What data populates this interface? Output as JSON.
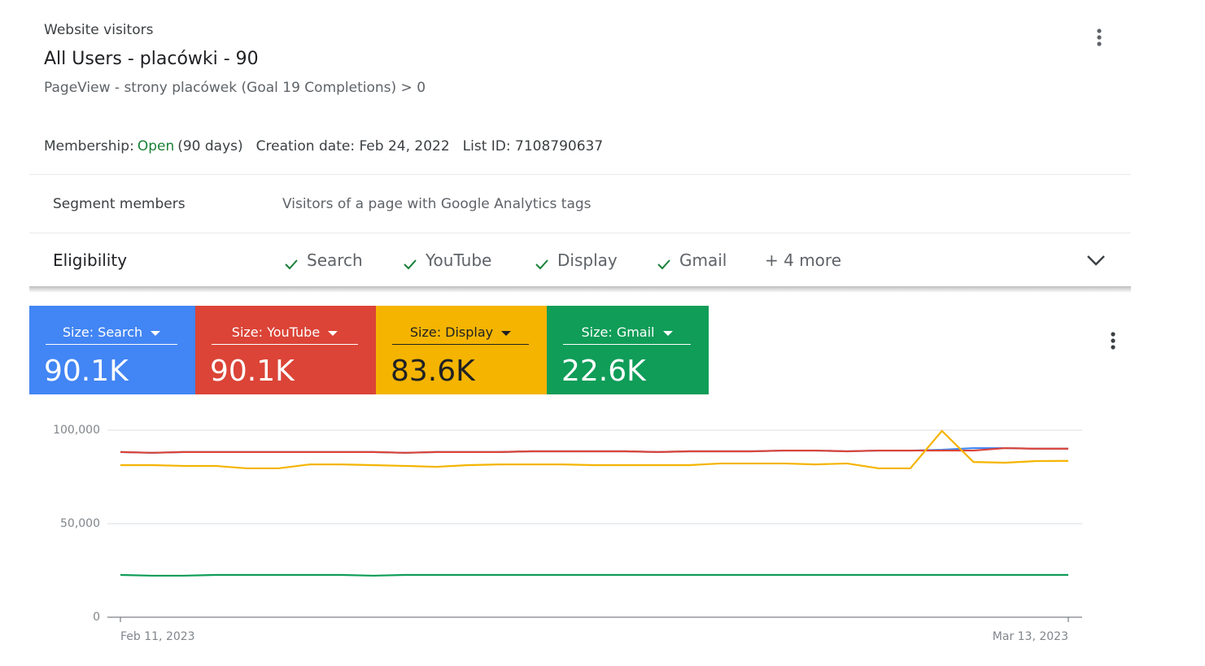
{
  "header": {
    "kicker": "Website visitors",
    "title": "All Users - placówki - 90",
    "rule": "PageView - strony placówek (Goal 19 Completions) > 0"
  },
  "membership": {
    "label": "Membership:",
    "status": "Open",
    "duration": "(90 days)",
    "creation": "Creation date: Feb 24, 2022",
    "list_id": "List ID: 7108790637"
  },
  "segment": {
    "label": "Segment members",
    "value": "Visitors of a page with Google Analytics tags"
  },
  "eligibility": {
    "label": "Eligibility",
    "items": [
      "Search",
      "YouTube",
      "Display",
      "Gmail"
    ],
    "more": "+ 4 more"
  },
  "chart_data": {
    "type": "line",
    "categories": [
      "Feb 11, 2023",
      null,
      null,
      null,
      null,
      null,
      null,
      null,
      null,
      null,
      null,
      null,
      null,
      null,
      null,
      null,
      null,
      null,
      null,
      null,
      null,
      null,
      null,
      null,
      null,
      null,
      null,
      null,
      null,
      null,
      "Mar 13, 2023"
    ],
    "series": [
      {
        "name": "Size: Search",
        "summary": "90.1K",
        "color": "#4285f4",
        "values": [
          88300,
          87900,
          88300,
          88300,
          88300,
          88300,
          88300,
          88300,
          88300,
          87900,
          88300,
          88300,
          88300,
          88700,
          88700,
          88700,
          88700,
          88300,
          88700,
          88700,
          88700,
          89100,
          89100,
          88700,
          89100,
          89100,
          89500,
          90400,
          90400,
          90100,
          90100
        ]
      },
      {
        "name": "Size: YouTube",
        "summary": "90.1K",
        "color": "#db4437",
        "values": [
          88300,
          87900,
          88300,
          88300,
          88300,
          88300,
          88300,
          88300,
          88300,
          87900,
          88300,
          88300,
          88300,
          88700,
          88700,
          88700,
          88700,
          88300,
          88700,
          88700,
          88700,
          89100,
          89100,
          88700,
          89100,
          89100,
          89100,
          89100,
          90400,
          90100,
          90100
        ]
      },
      {
        "name": "Size: Display",
        "summary": "83.6K",
        "color": "#f4b400",
        "values": [
          81300,
          81300,
          80900,
          80900,
          79600,
          79600,
          81700,
          81700,
          81300,
          80900,
          80400,
          81300,
          81700,
          81700,
          81700,
          81300,
          81300,
          81300,
          81300,
          82200,
          82200,
          82200,
          81700,
          82200,
          79600,
          79600,
          99600,
          83000,
          82600,
          83500,
          83600
        ]
      },
      {
        "name": "Size: Gmail",
        "summary": "22.6K",
        "color": "#0f9d58",
        "values": [
          22600,
          22200,
          22200,
          22600,
          22600,
          22600,
          22600,
          22600,
          22200,
          22600,
          22600,
          22600,
          22600,
          22600,
          22600,
          22600,
          22600,
          22600,
          22600,
          22600,
          22600,
          22600,
          22600,
          22600,
          22600,
          22600,
          22600,
          22600,
          22600,
          22600,
          22600
        ]
      }
    ],
    "ylim": [
      0,
      100000
    ],
    "yticks": [
      0,
      {
        "value": 50000,
        "label": "50,000"
      },
      {
        "value": 100000,
        "label": "100,000"
      }
    ],
    "grid": true
  }
}
